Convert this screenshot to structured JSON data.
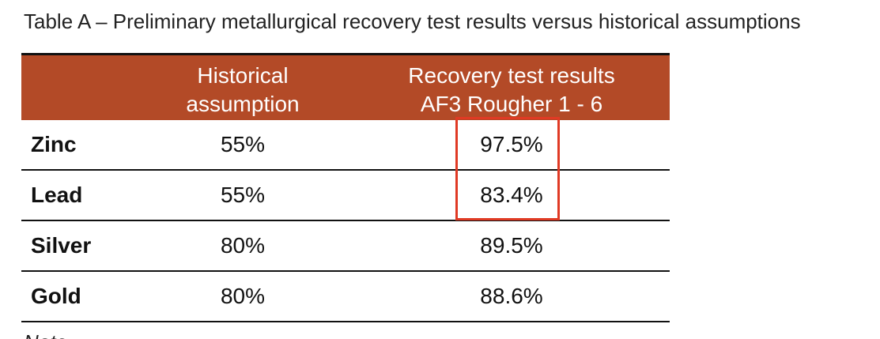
{
  "caption": "Table A – Preliminary metallurgical recovery test results versus historical assumptions",
  "table": {
    "header": {
      "label": "",
      "historical": [
        "Historical",
        "assumption"
      ],
      "recovery": [
        "Recovery test results",
        "AF3 Rougher 1 - 6"
      ]
    },
    "rows": [
      {
        "metal": "Zinc",
        "historical": "55%",
        "recovery": "97.5%"
      },
      {
        "metal": "Lead",
        "historical": "55%",
        "recovery": "83.4%"
      },
      {
        "metal": "Silver",
        "historical": "80%",
        "recovery": "89.5%"
      },
      {
        "metal": "Gold",
        "historical": "80%",
        "recovery": "88.6%"
      }
    ],
    "highlighted_rows": [
      "Zinc",
      "Lead"
    ]
  },
  "note": "Note",
  "colors": {
    "header_bg": "#b34a27",
    "header_text": "#ffffff",
    "highlight_border": "#e03a24",
    "rule": "#111111"
  }
}
